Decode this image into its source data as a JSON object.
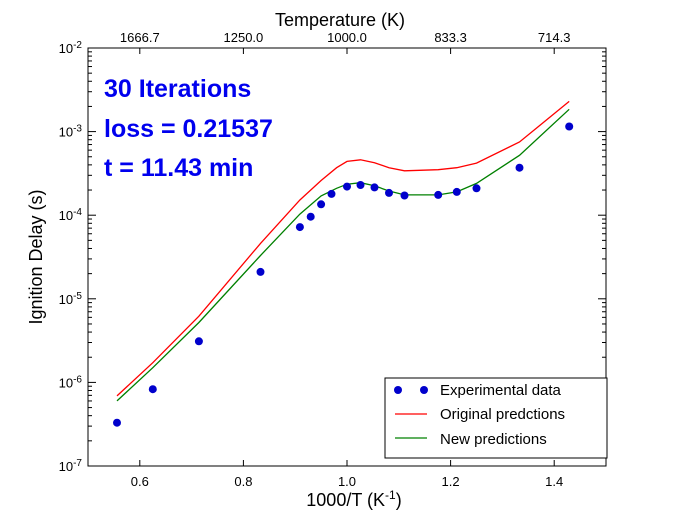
{
  "chart_data": {
    "type": "scatter",
    "xlabel_main": "1000/T",
    "xlabel_unit_base": "K",
    "xlabel_unit_exp": "-1",
    "x2label": "Temperature (K)",
    "ylabel": "Ignition Delay (s)",
    "xlim": [
      0.5,
      1.5
    ],
    "ylim_log10": [
      -7,
      -2
    ],
    "yscale": "log",
    "grid": false,
    "legend_position": "lower-right",
    "xticks": [
      0.6,
      0.8,
      1.0,
      1.2,
      1.4
    ],
    "xtick_labels": [
      "0.6",
      "0.8",
      "1.0",
      "1.2",
      "1.4"
    ],
    "ytick_base": "10",
    "yticks": [
      {
        "value": -7,
        "exp": "-7"
      },
      {
        "value": -6,
        "exp": "-6"
      },
      {
        "value": -5,
        "exp": "-5"
      },
      {
        "value": -4,
        "exp": "-4"
      },
      {
        "value": -3,
        "exp": "-3"
      },
      {
        "value": -2,
        "exp": "-2"
      }
    ],
    "top_ticks": [
      {
        "x": 0.6,
        "label": "1666.7"
      },
      {
        "x": 0.8,
        "label": "1250.0"
      },
      {
        "x": 1.0,
        "label": "1000.0"
      },
      {
        "x": 1.2,
        "label": "833.3"
      },
      {
        "x": 1.4,
        "label": "714.3"
      }
    ],
    "annotations": [
      "30 Iterations",
      "loss = 0.21537",
      "t = 11.43 min"
    ],
    "series": [
      {
        "name": "Experimental data",
        "kind": "scatter",
        "color": "#0000cc",
        "x": [
          0.556,
          0.625,
          0.714,
          0.833,
          0.909,
          0.93,
          0.95,
          0.97,
          1.0,
          1.026,
          1.053,
          1.081,
          1.111,
          1.176,
          1.212,
          1.25,
          1.333,
          1.429
        ],
        "y": [
          3.3e-07,
          8.3e-07,
          3.1e-06,
          2.1e-05,
          7.2e-05,
          9.6e-05,
          0.000135,
          0.00018,
          0.00022,
          0.00023,
          0.000215,
          0.000185,
          0.000172,
          0.000175,
          0.00019,
          0.00021,
          0.00037,
          0.00115
        ]
      },
      {
        "name": "Original predctions",
        "kind": "line",
        "color": "#ff0000",
        "x": [
          0.556,
          0.625,
          0.714,
          0.833,
          0.909,
          0.95,
          0.98,
          1.0,
          1.026,
          1.053,
          1.081,
          1.111,
          1.176,
          1.212,
          1.25,
          1.333,
          1.429
        ],
        "y": [
          6.9e-07,
          1.72e-06,
          6.2e-06,
          4.6e-05,
          0.000152,
          0.00026,
          0.00037,
          0.00044,
          0.00046,
          0.000425,
          0.00037,
          0.00034,
          0.00035,
          0.00037,
          0.00042,
          0.00075,
          0.0023
        ]
      },
      {
        "name": "New predictions",
        "kind": "line",
        "color": "#008000",
        "x": [
          0.556,
          0.625,
          0.714,
          0.833,
          0.909,
          0.95,
          0.98,
          1.0,
          1.026,
          1.053,
          1.081,
          1.111,
          1.176,
          1.212,
          1.25,
          1.333,
          1.429
        ],
        "y": [
          6e-07,
          1.5e-06,
          5.2e-06,
          3.3e-05,
          0.000103,
          0.00017,
          0.00021,
          0.000235,
          0.000245,
          0.000225,
          0.000195,
          0.000175,
          0.000175,
          0.00019,
          0.00024,
          0.00052,
          0.00185
        ]
      }
    ]
  },
  "colors": {
    "annotation": "#0000ee",
    "axes": "#000000"
  }
}
